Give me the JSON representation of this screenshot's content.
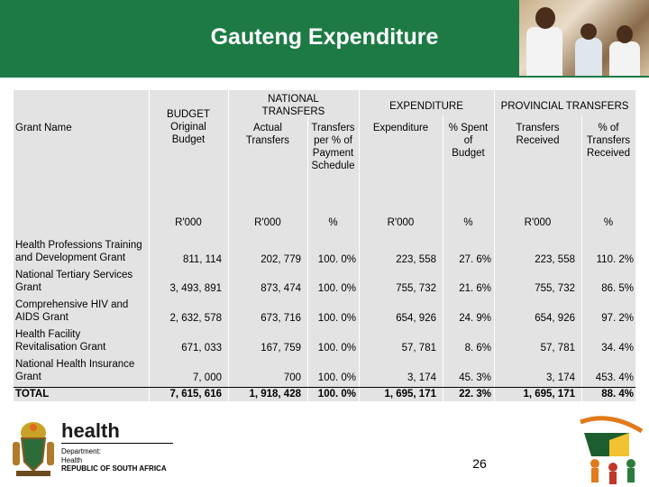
{
  "title": "Gauteng Expenditure",
  "headers": {
    "grant_name": "Grant Name",
    "budget": [
      "BUDGET",
      "Original",
      "Budget"
    ],
    "national_transfers": [
      "NATIONAL",
      "TRANSFERS"
    ],
    "actual_transfers": [
      "Actual",
      "Transfers"
    ],
    "transfers_pct": [
      "Transfers",
      "per % of",
      "Payment",
      "Schedule"
    ],
    "expenditure_group": "EXPENDITURE",
    "expenditure": "Expenditure",
    "pct_spent": [
      "% Spent",
      "of",
      "Budget"
    ],
    "provincial_transfers": "PROVINCIAL TRANSFERS",
    "transfers_received": [
      "Transfers",
      "Received"
    ],
    "pct_transfers_received": [
      "% of",
      "Transfers",
      "Received"
    ]
  },
  "units": [
    "R'000",
    "R'000",
    "%",
    "R'000",
    "%",
    "R'000",
    "%"
  ],
  "rows": [
    {
      "name": [
        "Health Professions Training",
        "and Development Grant"
      ],
      "values": [
        "811, 114",
        "202, 779",
        "100. 0%",
        "223, 558",
        "27. 6%",
        "223, 558",
        "110. 2%"
      ]
    },
    {
      "name": [
        "National Tertiary Services",
        "Grant"
      ],
      "values": [
        "3, 493, 891",
        "873, 474",
        "100. 0%",
        "755, 732",
        "21. 6%",
        "755, 732",
        "86. 5%"
      ]
    },
    {
      "name": [
        "Comprehensive HIV and",
        "AIDS Grant"
      ],
      "values": [
        "2, 632, 578",
        "673, 716",
        "100. 0%",
        "654, 926",
        "24. 9%",
        "654, 926",
        "97. 2%"
      ]
    },
    {
      "name": [
        "Health Facility",
        "Revitalisation Grant"
      ],
      "values": [
        "671, 033",
        "167, 759",
        "100. 0%",
        "57, 781",
        "8. 6%",
        "57, 781",
        "34. 4%"
      ]
    },
    {
      "name": [
        "National Health Insurance",
        "Grant"
      ],
      "values": [
        "7, 000",
        "700",
        "100. 0%",
        "3, 174",
        "45. 3%",
        "3, 174",
        "453. 4%"
      ]
    }
  ],
  "total": {
    "name": "TOTAL",
    "values": [
      "7, 615, 616",
      "1, 918, 428",
      "100. 0%",
      "1, 695, 171",
      "22. 3%",
      "1, 695, 171",
      "88. 4%"
    ]
  },
  "footer": {
    "logo_word": "health",
    "dept_lines": [
      "Department:",
      "Health",
      "REPUBLIC OF SOUTH AFRICA"
    ],
    "page_number": "26"
  }
}
